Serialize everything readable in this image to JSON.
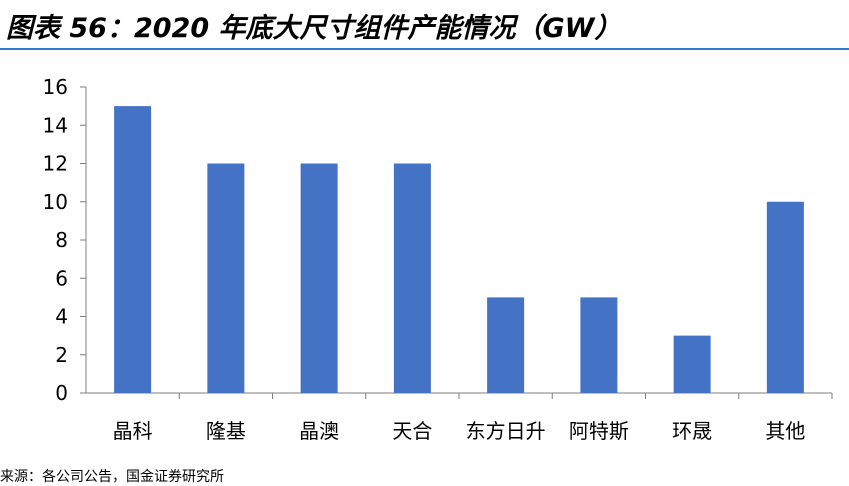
{
  "header": {
    "title": "图表 56：2020 年底大尺寸组件产能情况（GW）"
  },
  "colors": {
    "bar": "#4472c4",
    "title_rule": "#2a7fd4",
    "axis": "#7f7f7f"
  },
  "chart_data": {
    "type": "bar",
    "title": "",
    "xlabel": "",
    "ylabel": "",
    "categories": [
      "晶科",
      "隆基",
      "晶澳",
      "天合",
      "东方日升",
      "阿特斯",
      "环晟",
      "其他"
    ],
    "values": [
      15,
      12,
      12,
      12,
      5,
      5,
      3,
      10
    ],
    "ylim": [
      0,
      16
    ],
    "yticks": [
      0,
      2,
      4,
      6,
      8,
      10,
      12,
      14,
      16
    ],
    "grid": false,
    "legend": false
  },
  "footer": {
    "source": "来源：各公司公告，国金证券研究所"
  }
}
